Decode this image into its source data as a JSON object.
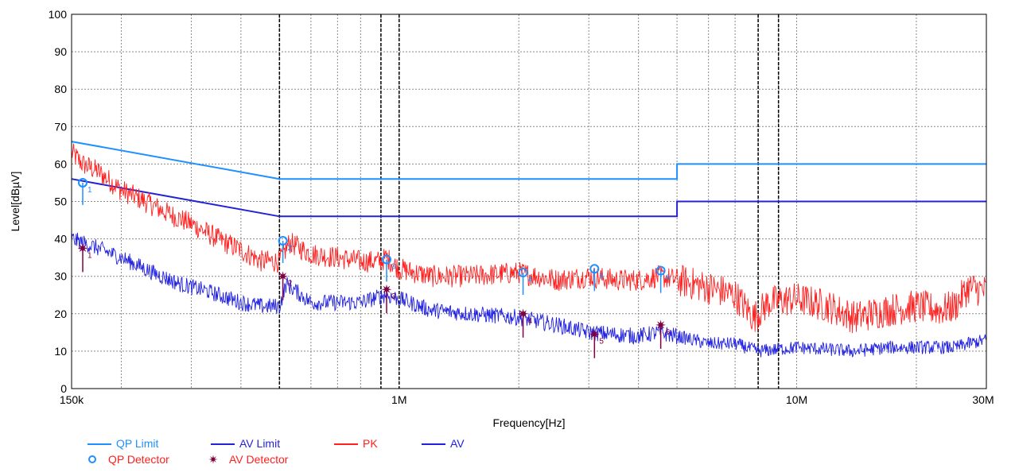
{
  "chart_data": {
    "type": "line",
    "title": "",
    "xlabel": "Frequency[Hz]",
    "ylabel": "Level[dBµV]",
    "x_scale": "log",
    "xlim": [
      150000,
      30000000
    ],
    "ylim": [
      0,
      100
    ],
    "x_ticks": [
      {
        "value": 150000,
        "label": "150k"
      },
      {
        "value": 1000000,
        "label": "1M"
      },
      {
        "value": 10000000,
        "label": "10M"
      },
      {
        "value": 30000000,
        "label": "30M"
      }
    ],
    "y_ticks": [
      {
        "value": 0,
        "label": "0"
      },
      {
        "value": 10,
        "label": "10"
      },
      {
        "value": 20,
        "label": "20"
      },
      {
        "value": 30,
        "label": "30"
      },
      {
        "value": 40,
        "label": "40"
      },
      {
        "value": 50,
        "label": "50"
      },
      {
        "value": 60,
        "label": "60"
      },
      {
        "value": 70,
        "label": "70"
      },
      {
        "value": 80,
        "label": "80"
      },
      {
        "value": 90,
        "label": "90"
      },
      {
        "value": 100,
        "label": "100"
      }
    ],
    "grid": true,
    "legend": "bottom-left",
    "series": [
      {
        "name": "QP Limit",
        "color": "#1e90ff",
        "style": "line",
        "points": [
          [
            150000,
            66
          ],
          [
            500000,
            56
          ],
          [
            5000000,
            56
          ],
          [
            5000000,
            60
          ],
          [
            30000000,
            60
          ]
        ]
      },
      {
        "name": "AV Limit",
        "color": "#2323d6",
        "style": "line",
        "points": [
          [
            150000,
            56
          ],
          [
            500000,
            46
          ],
          [
            5000000,
            46
          ],
          [
            5000000,
            50
          ],
          [
            30000000,
            50
          ]
        ]
      },
      {
        "name": "PK",
        "color": "#ff2020",
        "style": "noisy",
        "points": [
          [
            150000,
            63
          ],
          [
            160000,
            60
          ],
          [
            175000,
            58
          ],
          [
            200000,
            53
          ],
          [
            230000,
            50
          ],
          [
            260000,
            47
          ],
          [
            300000,
            44
          ],
          [
            350000,
            40
          ],
          [
            400000,
            37
          ],
          [
            450000,
            34
          ],
          [
            500000,
            34
          ],
          [
            530000,
            39
          ],
          [
            600000,
            36
          ],
          [
            700000,
            35
          ],
          [
            800000,
            34
          ],
          [
            900000,
            34
          ],
          [
            930000,
            35
          ],
          [
            1000000,
            32
          ],
          [
            1200000,
            30
          ],
          [
            1500000,
            30
          ],
          [
            2000000,
            31
          ],
          [
            2500000,
            29
          ],
          [
            3000000,
            30
          ],
          [
            3500000,
            29
          ],
          [
            4000000,
            29
          ],
          [
            4500000,
            30
          ],
          [
            5000000,
            29
          ],
          [
            6000000,
            27
          ],
          [
            7000000,
            25
          ],
          [
            7800000,
            19
          ],
          [
            8500000,
            23
          ],
          [
            10000000,
            24
          ],
          [
            12000000,
            22
          ],
          [
            14000000,
            19
          ],
          [
            17000000,
            21
          ],
          [
            20000000,
            22
          ],
          [
            23000000,
            21
          ],
          [
            25000000,
            22
          ],
          [
            27000000,
            27
          ],
          [
            30000000,
            26
          ]
        ]
      },
      {
        "name": "AV",
        "color": "#2020e0",
        "style": "noisy",
        "points": [
          [
            150000,
            40
          ],
          [
            170000,
            38
          ],
          [
            200000,
            35
          ],
          [
            240000,
            31
          ],
          [
            280000,
            28
          ],
          [
            330000,
            26
          ],
          [
            400000,
            23
          ],
          [
            450000,
            22
          ],
          [
            500000,
            22
          ],
          [
            520000,
            28
          ],
          [
            600000,
            23
          ],
          [
            800000,
            23
          ],
          [
            920000,
            25
          ],
          [
            1000000,
            24
          ],
          [
            1200000,
            21
          ],
          [
            1500000,
            20
          ],
          [
            2000000,
            19
          ],
          [
            2500000,
            17
          ],
          [
            3000000,
            15
          ],
          [
            4000000,
            14
          ],
          [
            4500000,
            15
          ],
          [
            5000000,
            14
          ],
          [
            6000000,
            12
          ],
          [
            7000000,
            12
          ],
          [
            8000000,
            10
          ],
          [
            10000000,
            11
          ],
          [
            14000000,
            10
          ],
          [
            17000000,
            11
          ],
          [
            20000000,
            11
          ],
          [
            25000000,
            11
          ],
          [
            27000000,
            12
          ],
          [
            30000000,
            13
          ]
        ]
      }
    ],
    "markers": [
      {
        "name": "QP Detector",
        "color": "#1e90ff",
        "symbol": "circle",
        "points": [
          {
            "x": 160000,
            "y": 55,
            "label": "1"
          },
          {
            "x": 510000,
            "y": 39.5,
            "label": "2"
          },
          {
            "x": 930000,
            "y": 34.5,
            "label": "3"
          },
          {
            "x": 2050000,
            "y": 31,
            "label": "4"
          },
          {
            "x": 3100000,
            "y": 32,
            "label": "5"
          },
          {
            "x": 4550000,
            "y": 31.5,
            "label": "6"
          }
        ]
      },
      {
        "name": "AV Detector",
        "color": "#800040",
        "symbol": "star",
        "points": [
          {
            "x": 160000,
            "y": 37.5,
            "label": "1"
          },
          {
            "x": 510000,
            "y": 30,
            "label": "2"
          },
          {
            "x": 930000,
            "y": 26.5,
            "label": "3"
          },
          {
            "x": 2050000,
            "y": 20,
            "label": "4"
          },
          {
            "x": 3100000,
            "y": 14.5,
            "label": "5"
          },
          {
            "x": 4550000,
            "y": 17,
            "label": "6"
          }
        ]
      }
    ],
    "annotation_lines": [
      500000,
      900000,
      1000000,
      8000000,
      9000000
    ]
  }
}
